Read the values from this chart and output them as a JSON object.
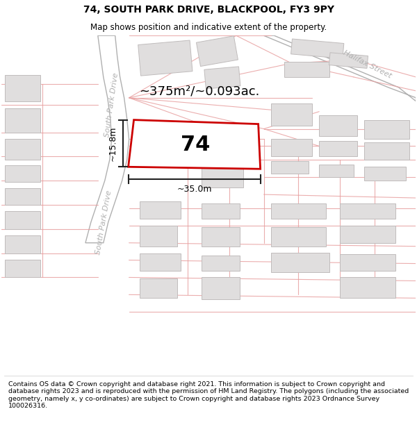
{
  "title": "74, SOUTH PARK DRIVE, BLACKPOOL, FY3 9PY",
  "subtitle": "Map shows position and indicative extent of the property.",
  "footer": "Contains OS data © Crown copyright and database right 2021. This information is subject to Crown copyright and database rights 2023 and is reproduced with the permission of HM Land Registry. The polygons (including the associated geometry, namely x, y co-ordinates) are subject to Crown copyright and database rights 2023 Ordnance Survey 100026316.",
  "area_label": "~375m²/~0.093ac.",
  "property_number": "74",
  "dim_width": "~35.0m",
  "dim_height": "~15.8m",
  "map_bg": "#ffffff",
  "building_fill": "#e0dede",
  "building_edge": "#c0bcbc",
  "prop_fill": "#ffffff",
  "prop_edge": "#cc0000",
  "cadastral_color": "#e8a0a0",
  "road_fill": "#ffffff",
  "road_edge": "#b0b0b0",
  "road_label_color": "#b0b0b0",
  "dim_color": "#222222",
  "title_fontsize": 10,
  "subtitle_fontsize": 8.5,
  "footer_fontsize": 6.8,
  "figsize": [
    6.0,
    6.25
  ],
  "dpi": 100
}
